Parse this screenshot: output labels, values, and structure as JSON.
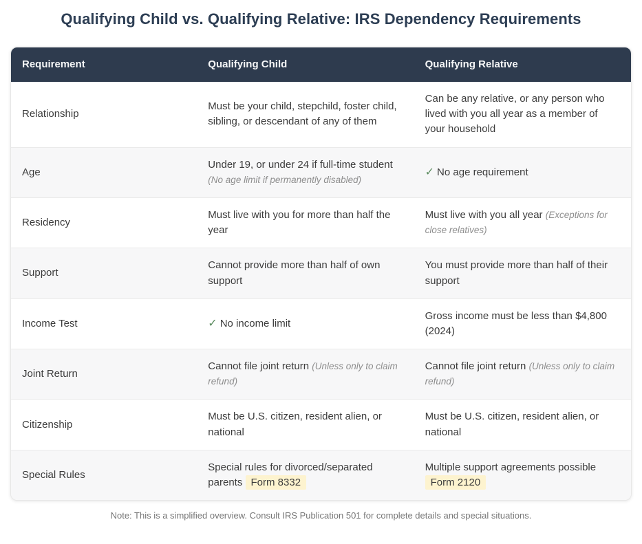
{
  "page": {
    "title": "Qualifying Child vs. Qualifying Relative: IRS Dependency Requirements",
    "footnote": "Note: This is a simplified overview. Consult IRS Publication 501 for complete details and special situations."
  },
  "colors": {
    "title": "#2d3e54",
    "header_bg": "#2e3b4e",
    "header_text": "#f5f6f7",
    "row_alt_bg": "#f7f7f8",
    "body_text": "#3c3c3c",
    "muted_italic": "#8e8e8e",
    "check_green": "#5b8c5f",
    "highlight_bg": "#fdf3cf",
    "note_text": "#767676",
    "border": "#eaeaea"
  },
  "table": {
    "check_symbol": "✓",
    "columns": [
      "Requirement",
      "Qualifying Child",
      "Qualifying Relative"
    ],
    "rows": [
      {
        "requirement": "Relationship",
        "child": {
          "text": "Must be your child, stepchild, foster child, sibling, or descendant of any of them"
        },
        "relative": {
          "text": "Can be any relative, or any person who lived with you all year as a member of your household"
        }
      },
      {
        "requirement": "Age",
        "child": {
          "text": "Under 19, or under 24 if full-time student",
          "note": "(No age limit if permanently disabled)"
        },
        "relative": {
          "check": true,
          "text": "No age requirement"
        }
      },
      {
        "requirement": "Residency",
        "child": {
          "text": "Must live with you for more than half the year"
        },
        "relative": {
          "text": "Must live with you all year",
          "note": "(Exceptions for close relatives)"
        }
      },
      {
        "requirement": "Support",
        "child": {
          "text": "Cannot provide more than half of own support"
        },
        "relative": {
          "text": "You must provide more than half of their support"
        }
      },
      {
        "requirement": "Income Test",
        "child": {
          "check": true,
          "text": "No income limit"
        },
        "relative": {
          "text": "Gross income must be less than $4,800 (2024)"
        }
      },
      {
        "requirement": "Joint Return",
        "child": {
          "text": "Cannot file joint return",
          "note": "(Unless only to claim refund)"
        },
        "relative": {
          "text": "Cannot file joint return",
          "note": "(Unless only to claim refund)"
        }
      },
      {
        "requirement": "Citizenship",
        "child": {
          "text": "Must be U.S. citizen, resident alien, or national"
        },
        "relative": {
          "text": "Must be U.S. citizen, resident alien, or national"
        }
      },
      {
        "requirement": "Special Rules",
        "child": {
          "text": "Special rules for divorced/separated parents",
          "badge": "Form 8332"
        },
        "relative": {
          "text": "Multiple support agreements possible",
          "badge": "Form 2120"
        }
      }
    ]
  }
}
